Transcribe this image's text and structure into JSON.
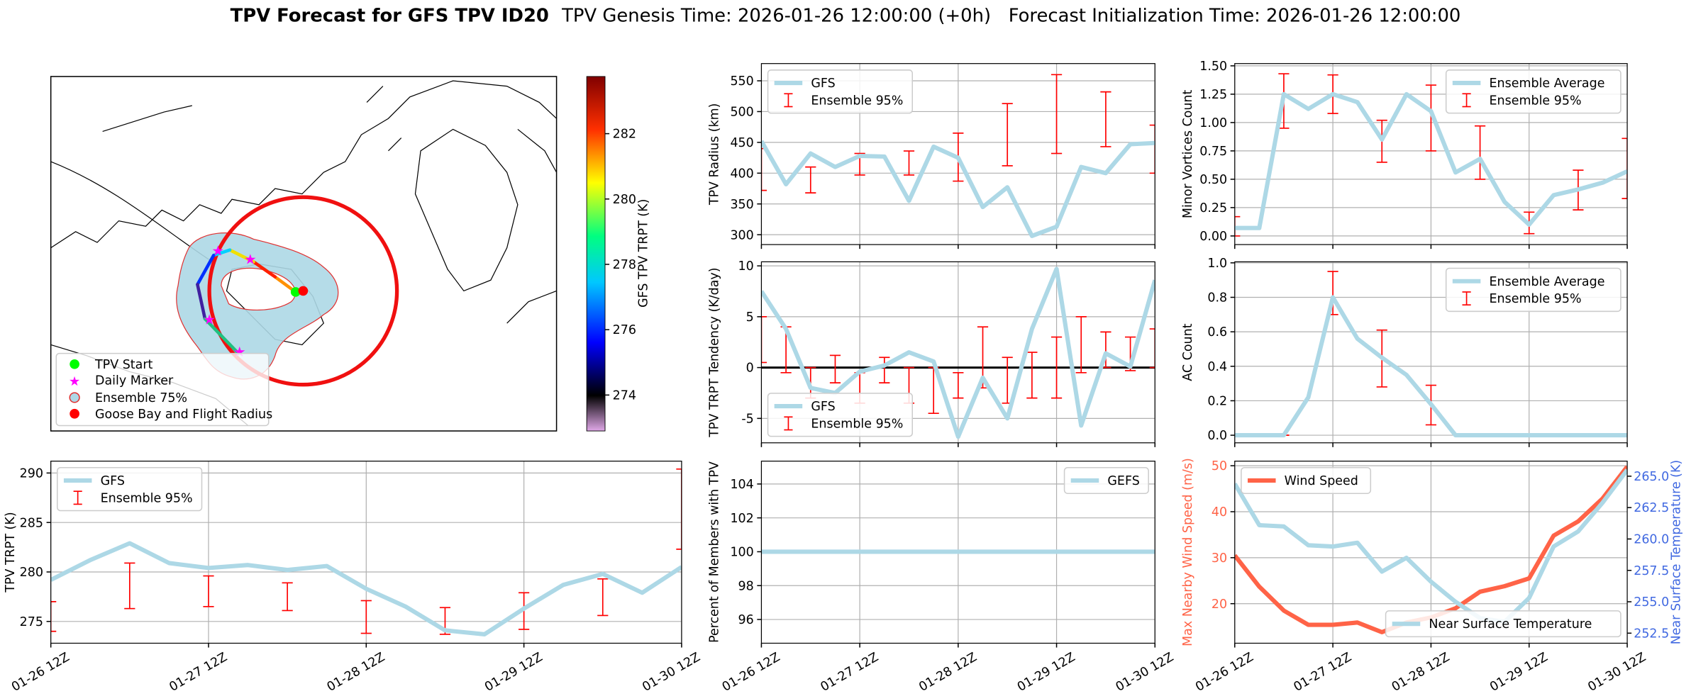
{
  "title": "TPV Forecast for GFS TPV ID20",
  "subtitle": "TPV Genesis Time: 2026-01-26 12:00:00 (+0h)   Forecast Initialization Time: 2026-01-26 12:00:00",
  "chart_data": [
    {
      "type": "map",
      "legend": [
        "TPV Start",
        "Daily Marker",
        "Ensemble 75%",
        "Goose Bay and Flight Radius"
      ],
      "legend_corner": "lower left",
      "colorbar": {
        "label": "GFS TPV TRPT (K)",
        "lim": [
          272.9,
          283.75
        ],
        "ticks": [
          274,
          276,
          278,
          280,
          282
        ]
      }
    },
    {
      "type": "line",
      "ylabel": "TPV Radius (km)",
      "grid": true,
      "legend": "upper left",
      "categories": [
        null,
        null,
        null,
        null,
        null,
        null,
        null,
        null,
        null,
        null,
        null,
        null,
        null,
        null,
        null,
        null,
        null
      ],
      "ylim": [
        284,
        578
      ],
      "yticks": [
        300,
        350,
        400,
        450,
        500,
        550
      ],
      "series": [
        {
          "name": "GFS",
          "color": "#add8e6",
          "values": [
            452,
            382,
            432,
            410,
            428,
            427,
            355,
            443,
            425,
            345,
            377,
            298,
            313,
            410,
            400,
            447,
            449
          ]
        }
      ],
      "errorbars": {
        "name": "Ensemble 95%",
        "color": "#ff0000",
        "low": [
          372,
          null,
          368,
          null,
          397,
          null,
          397,
          null,
          387,
          null,
          412,
          null,
          432,
          null,
          443,
          null,
          400
        ],
        "high": [
          440,
          null,
          410,
          null,
          432,
          null,
          436,
          null,
          465,
          null,
          513,
          null,
          560,
          null,
          532,
          null,
          478
        ]
      }
    },
    {
      "type": "line",
      "ylabel": "Minor Vortices Count",
      "grid": true,
      "legend": "upper right",
      "categories": [
        null,
        null,
        null,
        null,
        null,
        null,
        null,
        null,
        null,
        null,
        null,
        null,
        null,
        null,
        null,
        null,
        null
      ],
      "ylim": [
        -0.076,
        1.52
      ],
      "yticks": [
        {
          "value": 0,
          "label": "0.00"
        },
        0.25,
        {
          "value": 0.5,
          "label": "0.50"
        },
        0.75,
        {
          "value": 1,
          "label": "1.00"
        },
        1.25,
        {
          "value": 1.5,
          "label": "1.50"
        }
      ],
      "series": [
        {
          "name": "Ensemble Average",
          "color": "#add8e6",
          "values": [
            0.07,
            0.07,
            1.25,
            1.12,
            1.25,
            1.18,
            0.85,
            1.25,
            1.1,
            0.56,
            0.68,
            0.3,
            0.1,
            0.36,
            0.41,
            0.47,
            0.57
          ]
        }
      ],
      "errorbars": {
        "name": "Ensemble 95%",
        "color": "#ff0000",
        "low": [
          0,
          null,
          0.95,
          null,
          1.08,
          null,
          0.65,
          null,
          0.75,
          null,
          0.5,
          null,
          0.02,
          null,
          0.23,
          null,
          0.33
        ],
        "high": [
          0.17,
          null,
          1.43,
          null,
          1.42,
          null,
          1.02,
          null,
          1.33,
          null,
          0.97,
          null,
          0.21,
          null,
          0.58,
          null,
          0.86
        ]
      }
    },
    {
      "type": "line",
      "ylabel": "TPV TRPT Tendency (K/day)",
      "grid": true,
      "legend": "lower left",
      "hline": 0,
      "categories": [
        null,
        null,
        null,
        null,
        null,
        null,
        null,
        null,
        null,
        null,
        null,
        null,
        null,
        null,
        null,
        null,
        null
      ],
      "ylim": [
        -7.4,
        10.4
      ],
      "yticks": [
        -5,
        0,
        5,
        10
      ],
      "series": [
        {
          "name": "GFS",
          "color": "#add8e6",
          "values": [
            7.5,
            3.8,
            -2,
            -2.5,
            -0.4,
            0.2,
            1.5,
            0.6,
            -6.8,
            -1,
            -5,
            3.8,
            9.7,
            -5.7,
            1.4,
            0.1,
            8.6
          ]
        }
      ],
      "errorbars": {
        "name": "Ensemble 95%",
        "color": "#ff0000",
        "low": [
          0.5,
          -0.5,
          -3,
          -1.5,
          -3.5,
          -1.5,
          -3.5,
          -4.5,
          -3,
          -2,
          -3.5,
          -3,
          -3,
          -0.5,
          0,
          -0.3,
          0
        ],
        "high": [
          5,
          4,
          0,
          1.2,
          -0.5,
          1,
          0,
          0,
          -0.5,
          4,
          1,
          1.5,
          3,
          5,
          3.5,
          3,
          3.8
        ]
      }
    },
    {
      "type": "line",
      "ylabel": "AC Count",
      "grid": true,
      "legend": "upper right",
      "categories": [
        null,
        null,
        null,
        null,
        null,
        null,
        null,
        null,
        null,
        null,
        null,
        null,
        null,
        null,
        null,
        null,
        null
      ],
      "ylim": [
        -0.044,
        1.006
      ],
      "yticks": [
        {
          "value": 0,
          "label": "0.0"
        },
        0.2,
        0.4,
        0.6,
        0.8,
        {
          "value": 1,
          "label": "1.0"
        }
      ],
      "series": [
        {
          "name": "Ensemble Average",
          "color": "#add8e6",
          "values": [
            0,
            0,
            0,
            0.22,
            0.8,
            0.56,
            0.45,
            0.35,
            0.18,
            0,
            0,
            0,
            0,
            0,
            0,
            0,
            0
          ]
        }
      ],
      "errorbars": {
        "name": "Ensemble 95%",
        "color": "#ff0000",
        "low": [
          0,
          null,
          0,
          null,
          0.7,
          null,
          0.28,
          null,
          0.06,
          null,
          0,
          null,
          0,
          null,
          0,
          null,
          0
        ],
        "high": [
          0,
          null,
          0,
          null,
          0.95,
          null,
          0.61,
          null,
          0.29,
          null,
          0,
          null,
          0,
          null,
          0,
          null,
          0
        ]
      }
    },
    {
      "type": "line",
      "ylabel": "TPV TRPT (K)",
      "grid": true,
      "legend": "upper left",
      "categories": [
        "01-26 12Z",
        null,
        null,
        null,
        "01-27 12Z",
        null,
        null,
        null,
        "01-28 12Z",
        null,
        null,
        null,
        "01-29 12Z",
        null,
        null,
        null,
        "01-30 12Z"
      ],
      "ylim": [
        272.8,
        291.2
      ],
      "yticks": [
        275,
        280,
        285,
        290
      ],
      "series": [
        {
          "name": "GFS",
          "color": "#add8e6",
          "values": [
            279.2,
            281.2,
            282.9,
            280.9,
            280.4,
            280.7,
            280.2,
            280.6,
            278.3,
            276.5,
            274.1,
            273.7,
            276.3,
            278.7,
            279.8,
            277.9,
            280.5
          ]
        }
      ],
      "errorbars": {
        "name": "Ensemble 95%",
        "color": "#ff0000",
        "low": [
          274,
          null,
          276.3,
          null,
          276.5,
          null,
          276.1,
          null,
          273.8,
          null,
          273.7,
          null,
          274.2,
          null,
          275.6,
          null,
          282.3
        ],
        "high": [
          277,
          null,
          280.9,
          null,
          279.6,
          null,
          278.9,
          null,
          277.1,
          null,
          276.4,
          null,
          277.9,
          null,
          279.3,
          null,
          290.4
        ]
      }
    },
    {
      "type": "line",
      "ylabel": "Percent of Members with TPV",
      "grid": true,
      "legend": "upper right",
      "categories": [
        "01-26 12Z",
        null,
        null,
        null,
        "01-27 12Z",
        null,
        null,
        null,
        "01-28 12Z",
        null,
        null,
        null,
        "01-29 12Z",
        null,
        null,
        null,
        "01-30 12Z"
      ],
      "ylim": [
        94.6,
        105.35
      ],
      "yticks": [
        96,
        98,
        100,
        102,
        104
      ],
      "series": [
        {
          "name": "GEFS",
          "color": "#add8e6",
          "values": [
            100,
            100,
            100,
            100,
            100,
            100,
            100,
            100,
            100,
            100,
            100,
            100,
            100,
            100,
            100,
            100,
            100
          ]
        }
      ]
    },
    {
      "type": "line",
      "ylabel": "Max Nearby Wind Speed (m/s)",
      "y2label": "Near Surface Temperature (K)",
      "grid": true,
      "ycolor": "#ff6347",
      "y2color": "#4169e1",
      "categories": [
        "01-26 12Z",
        null,
        null,
        null,
        "01-27 12Z",
        null,
        null,
        null,
        "01-28 12Z",
        null,
        null,
        null,
        "01-29 12Z",
        null,
        null,
        null,
        "01-30 12Z"
      ],
      "ylim": [
        11.4,
        51
      ],
      "yticks": [
        20,
        30,
        40,
        50
      ],
      "y2lim": [
        251.7,
        266.2
      ],
      "y2ticks": [
        252.5,
        {
          "value": 255,
          "label": "255.0"
        },
        257.5,
        {
          "value": 260,
          "label": "260.0"
        },
        262.5,
        {
          "value": 265,
          "label": "265.0"
        }
      ],
      "series": [
        {
          "name": "Wind Speed",
          "color": "#ff6347",
          "legend": "upper left",
          "values": [
            30.5,
            23.7,
            18.5,
            15.4,
            15.4,
            15.9,
            13.8,
            15.9,
            17,
            19,
            22.6,
            23.8,
            25.5,
            34.8,
            37.9,
            42.9,
            49.8
          ]
        },
        {
          "name": "Near Surface Temperature",
          "color": "#add8e6",
          "axis": "y2",
          "legend": "lower right",
          "values": [
            264.4,
            261.1,
            261,
            259.5,
            259.4,
            259.7,
            257.4,
            258.5,
            256.6,
            255,
            253.7,
            253.4,
            255.3,
            259.4,
            260.6,
            262.9,
            265.5
          ]
        }
      ]
    }
  ]
}
